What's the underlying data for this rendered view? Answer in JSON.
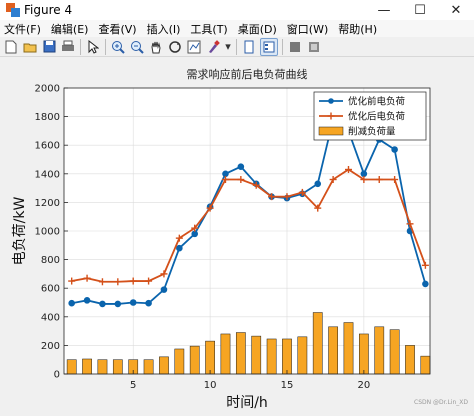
{
  "window": {
    "title": "Figure 4",
    "controls": [
      "—",
      "☐",
      "✕"
    ]
  },
  "menu": [
    "文件(F)",
    "编辑(E)",
    "查看(V)",
    "插入(I)",
    "工具(T)",
    "桌面(D)",
    "窗口(W)",
    "帮助(H)"
  ],
  "toolbar": {
    "icons": [
      "new-file-icon",
      "open-folder-icon",
      "save-icon",
      "print-icon",
      "select-arrow-icon",
      "zoom-in-icon",
      "zoom-out-icon",
      "pan-hand-icon",
      "rotate-3d-icon",
      "data-cursor-icon",
      "brush-icon",
      "dropdown-icon",
      "link-plot-icon",
      "insert-colorbar-icon",
      "insert-legend-icon",
      "hide-plot-tools-icon",
      "show-plot-tools-icon"
    ]
  },
  "colors": {
    "blue": "#0a64ad",
    "red": "#d4501a",
    "bar": "#f6a523",
    "bar_edge": "#1a1a1a"
  },
  "watermark": "CSDN @Dr.Lin_XD",
  "chart_data": {
    "type": "bar+line",
    "title": "需求响应前后电负荷曲线",
    "xlabel": "时间/h",
    "ylabel": "电负荷/kW",
    "xlim": [
      0.5,
      24.3
    ],
    "ylim": [
      0,
      2000
    ],
    "xticks": [
      5,
      10,
      15,
      20
    ],
    "yticks": [
      0,
      200,
      400,
      600,
      800,
      1000,
      1200,
      1400,
      1600,
      1800,
      2000
    ],
    "grid": true,
    "legend_position": "top-right",
    "x": [
      1,
      2,
      3,
      4,
      5,
      6,
      7,
      8,
      9,
      10,
      11,
      12,
      13,
      14,
      15,
      16,
      17,
      18,
      19,
      20,
      21,
      22,
      23,
      24
    ],
    "series": [
      {
        "name": "优化前电负荷",
        "type": "line",
        "marker": "circle",
        "values": [
          495,
          515,
          490,
          490,
          500,
          495,
          590,
          880,
          980,
          1170,
          1400,
          1450,
          1330,
          1240,
          1230,
          1260,
          1330,
          1780,
          1700,
          1400,
          1640,
          1570,
          1000,
          630
        ]
      },
      {
        "name": "优化后电负荷",
        "type": "line",
        "marker": "plus",
        "values": [
          650,
          670,
          645,
          645,
          650,
          650,
          700,
          950,
          1020,
          1160,
          1360,
          1360,
          1320,
          1240,
          1240,
          1270,
          1160,
          1360,
          1430,
          1360,
          1360,
          1360,
          1050,
          760
        ]
      },
      {
        "name": "削减负荷量",
        "type": "bar",
        "values": [
          100,
          105,
          100,
          100,
          100,
          100,
          120,
          175,
          195,
          230,
          280,
          290,
          265,
          245,
          245,
          260,
          430,
          330,
          360,
          280,
          330,
          310,
          200,
          125
        ]
      }
    ]
  }
}
